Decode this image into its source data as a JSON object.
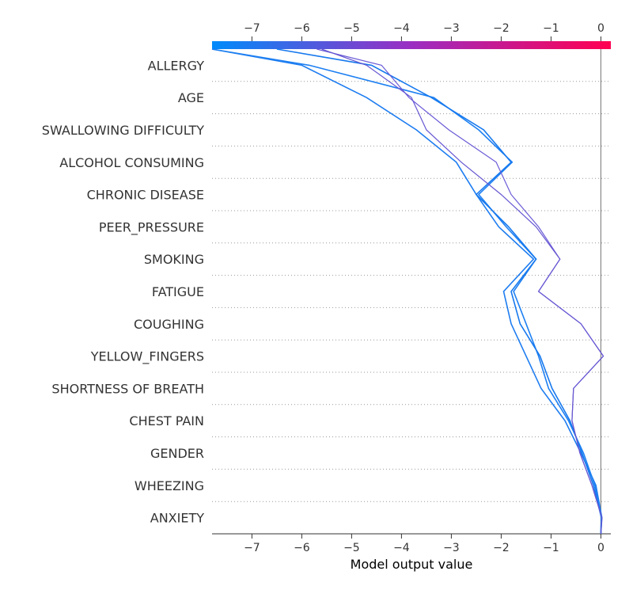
{
  "chart_data": {
    "type": "line",
    "title": "",
    "xlabel": "Model output value",
    "ylabel": "",
    "xlim": [
      -7.8,
      0.2
    ],
    "x_ticks": [
      -7,
      -6,
      -5,
      -4,
      -3,
      -2,
      -1,
      0
    ],
    "x_tick_labels": [
      "−7",
      "−6",
      "−5",
      "−4",
      "−3",
      "−2",
      "−1",
      "0"
    ],
    "base_value": 0,
    "colorbar": {
      "low": "#008bfb",
      "high": "#ff0051"
    },
    "features": [
      "ALLERGY",
      "AGE",
      "SWALLOWING DIFFICULTY",
      "ALCOHOL CONSUMING",
      "CHRONIC DISEASE",
      "PEER_PRESSURE",
      "SMOKING",
      "FATIGUE",
      "COUGHING",
      "YELLOW_FINGERS",
      "SHORTNESS OF BREATH",
      "CHEST PAIN",
      "GENDER",
      "WHEEZING",
      "ANXIETY"
    ],
    "series": [
      {
        "values": [
          0,
          0.02,
          -0.1,
          -0.4,
          -0.72,
          -1.2,
          -1.5,
          -1.8,
          -1.95,
          -1.35,
          -2.05,
          -2.5,
          -2.9,
          -3.7,
          -4.7,
          -6.0,
          -7.8
        ],
        "color": "#1d7cf0"
      },
      {
        "values": [
          0,
          0.01,
          -0.12,
          -0.35,
          -0.65,
          -1.05,
          -1.25,
          -1.5,
          -1.75,
          -1.3,
          -1.9,
          -2.45,
          -1.78,
          -2.45,
          -3.35,
          -5.85,
          -7.8
        ],
        "color": "#1e80f2"
      },
      {
        "values": [
          0,
          0.01,
          -0.15,
          -0.38,
          -0.62,
          -0.98,
          -1.22,
          -1.62,
          -1.8,
          -1.3,
          -1.85,
          -2.5,
          -1.8,
          -2.35,
          -3.4,
          -4.6,
          -6.5
        ],
        "color": "#1779ee"
      },
      {
        "values": [
          0,
          0.02,
          -0.18,
          -0.42,
          -0.58,
          -0.55,
          0.05,
          -0.4,
          -1.25,
          -0.82,
          -1.25,
          -1.8,
          -2.1,
          -3.05,
          -3.85,
          -4.4,
          -5.7
        ],
        "color": "#6a5bd6"
      },
      {
        "values": [
          0,
          0.02,
          -0.18,
          -0.42,
          -0.58,
          -0.55,
          0.05,
          -0.4,
          -1.25,
          -0.82,
          -1.3,
          -2.0,
          -2.8,
          -3.5,
          -3.8,
          -4.7,
          -5.6
        ],
        "color": "#6657d2"
      }
    ]
  }
}
